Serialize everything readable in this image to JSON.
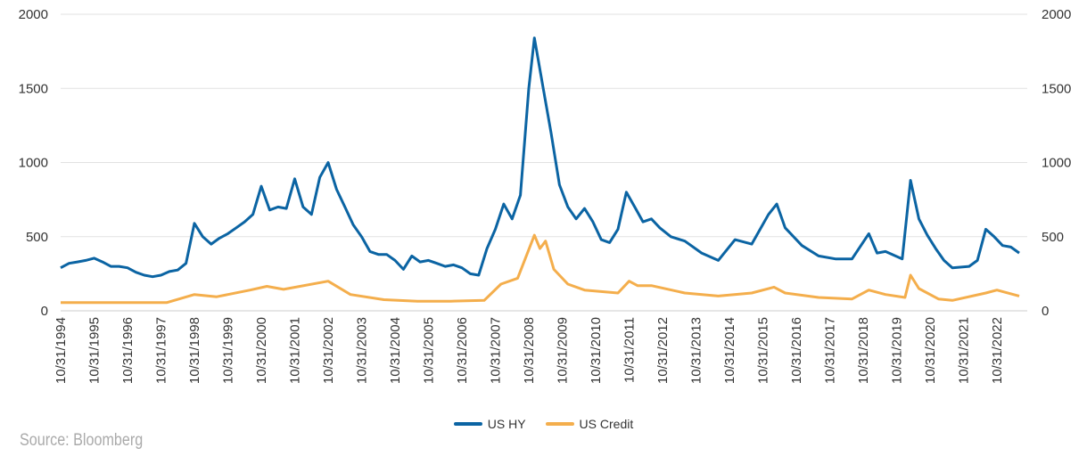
{
  "chart_data": {
    "type": "line",
    "title": "",
    "xlabel": "",
    "ylabel": "",
    "ylim": [
      0,
      2000
    ],
    "y_ticks": [
      "0",
      "500",
      "1000",
      "1500",
      "2000"
    ],
    "y2_ticks": [
      "0",
      "500",
      "1000",
      "1500",
      "2000"
    ],
    "x_tick_labels": [
      "10/31/1994",
      "10/31/1995",
      "10/31/1996",
      "10/31/1997",
      "10/31/1998",
      "10/31/1999",
      "10/31/2000",
      "10/31/2001",
      "10/31/2002",
      "10/31/2003",
      "10/31/2004",
      "10/31/2005",
      "10/31/2006",
      "10/31/2007",
      "10/31/2008",
      "10/31/2009",
      "10/31/2010",
      "10/31/2011",
      "10/31/2012",
      "10/31/2013",
      "10/31/2014",
      "10/31/2015",
      "10/31/2016",
      "10/31/2017",
      "10/31/2018",
      "10/31/2019",
      "10/31/2020",
      "10/31/2021",
      "10/31/2022"
    ],
    "grid": true,
    "legend": "bottom",
    "series": [
      {
        "name": "US HY",
        "color": "#0B64A3",
        "points": [
          [
            "1994-10",
            290
          ],
          [
            "1995-01",
            320
          ],
          [
            "1995-04",
            330
          ],
          [
            "1995-07",
            340
          ],
          [
            "1995-10",
            355
          ],
          [
            "1996-01",
            330
          ],
          [
            "1996-04",
            300
          ],
          [
            "1996-07",
            300
          ],
          [
            "1996-10",
            290
          ],
          [
            "1997-01",
            260
          ],
          [
            "1997-04",
            240
          ],
          [
            "1997-07",
            230
          ],
          [
            "1997-10",
            240
          ],
          [
            "1998-01",
            265
          ],
          [
            "1998-04",
            275
          ],
          [
            "1998-07",
            320
          ],
          [
            "1998-10",
            590
          ],
          [
            "1999-01",
            500
          ],
          [
            "1999-04",
            450
          ],
          [
            "1999-07",
            490
          ],
          [
            "1999-10",
            520
          ],
          [
            "2000-01",
            560
          ],
          [
            "2000-04",
            600
          ],
          [
            "2000-07",
            650
          ],
          [
            "2000-10",
            840
          ],
          [
            "2001-01",
            680
          ],
          [
            "2001-04",
            700
          ],
          [
            "2001-07",
            690
          ],
          [
            "2001-10",
            890
          ],
          [
            "2002-01",
            700
          ],
          [
            "2002-04",
            650
          ],
          [
            "2002-07",
            900
          ],
          [
            "2002-10",
            1000
          ],
          [
            "2003-01",
            820
          ],
          [
            "2003-04",
            700
          ],
          [
            "2003-07",
            580
          ],
          [
            "2003-10",
            500
          ],
          [
            "2004-01",
            400
          ],
          [
            "2004-04",
            380
          ],
          [
            "2004-07",
            380
          ],
          [
            "2004-10",
            340
          ],
          [
            "2005-01",
            280
          ],
          [
            "2005-04",
            370
          ],
          [
            "2005-07",
            330
          ],
          [
            "2005-10",
            340
          ],
          [
            "2006-01",
            320
          ],
          [
            "2006-04",
            300
          ],
          [
            "2006-07",
            310
          ],
          [
            "2006-10",
            290
          ],
          [
            "2007-01",
            250
          ],
          [
            "2007-04",
            240
          ],
          [
            "2007-07",
            420
          ],
          [
            "2007-10",
            550
          ],
          [
            "2008-01",
            720
          ],
          [
            "2008-04",
            620
          ],
          [
            "2008-07",
            780
          ],
          [
            "2008-10",
            1500
          ],
          [
            "2008-12",
            1840
          ],
          [
            "2009-03",
            1520
          ],
          [
            "2009-06",
            1200
          ],
          [
            "2009-09",
            850
          ],
          [
            "2009-12",
            700
          ],
          [
            "2010-03",
            620
          ],
          [
            "2010-06",
            690
          ],
          [
            "2010-09",
            600
          ],
          [
            "2010-12",
            480
          ],
          [
            "2011-03",
            460
          ],
          [
            "2011-06",
            550
          ],
          [
            "2011-09",
            800
          ],
          [
            "2011-12",
            700
          ],
          [
            "2012-03",
            600
          ],
          [
            "2012-06",
            620
          ],
          [
            "2012-09",
            560
          ],
          [
            "2013-01",
            500
          ],
          [
            "2013-06",
            470
          ],
          [
            "2013-12",
            390
          ],
          [
            "2014-06",
            340
          ],
          [
            "2014-12",
            480
          ],
          [
            "2015-06",
            450
          ],
          [
            "2015-12",
            650
          ],
          [
            "2016-03",
            720
          ],
          [
            "2016-06",
            560
          ],
          [
            "2016-12",
            440
          ],
          [
            "2017-06",
            370
          ],
          [
            "2017-12",
            350
          ],
          [
            "2018-06",
            350
          ],
          [
            "2018-12",
            520
          ],
          [
            "2019-03",
            390
          ],
          [
            "2019-06",
            400
          ],
          [
            "2019-12",
            350
          ],
          [
            "2020-03",
            880
          ],
          [
            "2020-06",
            620
          ],
          [
            "2020-09",
            510
          ],
          [
            "2020-12",
            420
          ],
          [
            "2021-03",
            340
          ],
          [
            "2021-06",
            290
          ],
          [
            "2021-12",
            300
          ],
          [
            "2022-03",
            340
          ],
          [
            "2022-06",
            550
          ],
          [
            "2022-09",
            500
          ],
          [
            "2022-12",
            440
          ],
          [
            "2023-03",
            430
          ],
          [
            "2023-06",
            390
          ]
        ]
      },
      {
        "name": "US Credit",
        "color": "#F4AE4C",
        "points": [
          [
            "1994-10",
            55
          ],
          [
            "1997-12",
            55
          ],
          [
            "1998-10",
            110
          ],
          [
            "1999-06",
            95
          ],
          [
            "2000-06",
            140
          ],
          [
            "2000-12",
            165
          ],
          [
            "2001-06",
            145
          ],
          [
            "2002-10",
            200
          ],
          [
            "2003-06",
            110
          ],
          [
            "2004-06",
            75
          ],
          [
            "2005-06",
            65
          ],
          [
            "2006-06",
            65
          ],
          [
            "2007-06",
            70
          ],
          [
            "2007-12",
            180
          ],
          [
            "2008-06",
            220
          ],
          [
            "2008-12",
            510
          ],
          [
            "2009-02",
            420
          ],
          [
            "2009-04",
            470
          ],
          [
            "2009-07",
            280
          ],
          [
            "2009-12",
            180
          ],
          [
            "2010-06",
            140
          ],
          [
            "2011-06",
            120
          ],
          [
            "2011-10",
            200
          ],
          [
            "2012-01",
            170
          ],
          [
            "2012-06",
            170
          ],
          [
            "2013-06",
            120
          ],
          [
            "2014-06",
            100
          ],
          [
            "2015-06",
            120
          ],
          [
            "2016-02",
            160
          ],
          [
            "2016-06",
            120
          ],
          [
            "2017-06",
            90
          ],
          [
            "2018-06",
            80
          ],
          [
            "2018-12",
            140
          ],
          [
            "2019-06",
            110
          ],
          [
            "2020-01",
            90
          ],
          [
            "2020-03",
            240
          ],
          [
            "2020-06",
            150
          ],
          [
            "2021-01",
            80
          ],
          [
            "2021-06",
            70
          ],
          [
            "2022-06",
            120
          ],
          [
            "2022-10",
            140
          ],
          [
            "2023-06",
            100
          ]
        ]
      }
    ]
  },
  "source": "Source: Bloomberg"
}
